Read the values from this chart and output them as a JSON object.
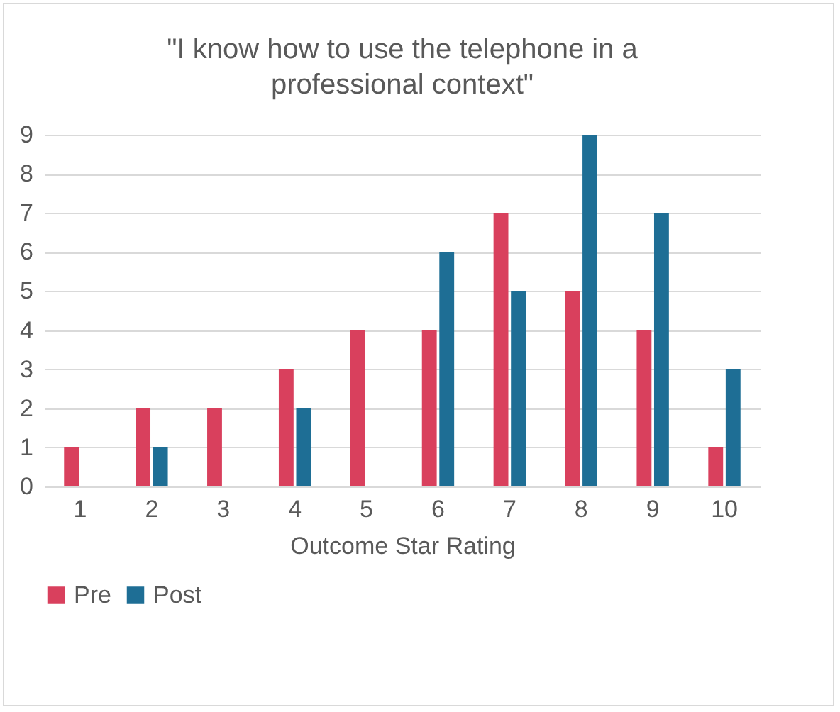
{
  "chart_data": {
    "type": "bar",
    "title": "\"I know how to use the telephone in a professional context\"",
    "xlabel": "Outcome Star Rating",
    "categories": [
      "1",
      "2",
      "3",
      "4",
      "5",
      "6",
      "7",
      "8",
      "9",
      "10"
    ],
    "series": [
      {
        "name": "Pre",
        "color": "#d9405d",
        "values": [
          1,
          2,
          2,
          3,
          4,
          4,
          7,
          5,
          4,
          1
        ]
      },
      {
        "name": "Post",
        "color": "#1e6e95",
        "values": [
          0,
          1,
          0,
          2,
          0,
          6,
          5,
          9,
          7,
          3
        ]
      }
    ],
    "ylim": [
      0,
      9
    ],
    "yticks": [
      0,
      1,
      2,
      3,
      4,
      5,
      6,
      7,
      8,
      9
    ],
    "grid": "y",
    "legend": "bottom"
  }
}
